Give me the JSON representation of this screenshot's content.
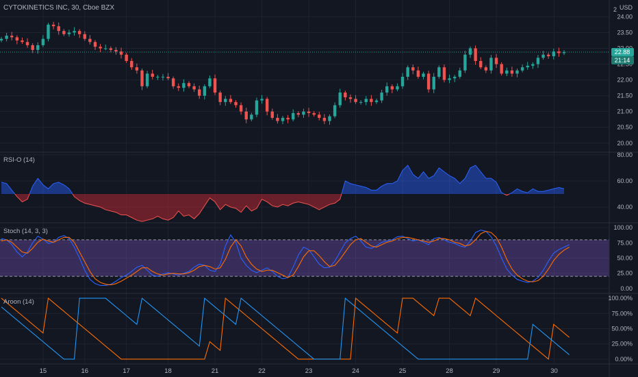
{
  "header": {
    "title": "CYTOKINETICS INC, 30, Cboe BZX",
    "currency": "USD",
    "alert_glyph": "2"
  },
  "price_badges": {
    "last_price": "22.88",
    "countdown": "21:14"
  },
  "colors": {
    "up": "#26a69a",
    "down": "#ef5350",
    "rsi_up": "#2962ff",
    "rsi_down": "#b22833",
    "stoch_k": "#2962ff",
    "stoch_d": "#ff6d00",
    "stoch_band": "#7e57c2",
    "aroon_up": "#ff6d00",
    "aroon_down": "#2196f3"
  },
  "chart_data": [
    {
      "type": "candlestick",
      "title": "CYTOKINETICS INC, 30, Cboe BZX",
      "y_ticks": [
        "24.00",
        "23.50",
        "23.00",
        "22.50",
        "22.00",
        "21.50",
        "21.00",
        "20.50",
        "20.00"
      ],
      "ylim": [
        19.8,
        24.4
      ],
      "x_ticks": [
        "15",
        "16",
        "17",
        "18",
        "21",
        "22",
        "23",
        "24",
        "25",
        "28",
        "29",
        "30"
      ],
      "last_price": 22.88,
      "closes": [
        23.3,
        23.4,
        23.35,
        23.25,
        23.2,
        23.1,
        22.95,
        23.1,
        23.3,
        23.75,
        23.7,
        23.55,
        23.45,
        23.5,
        23.55,
        23.45,
        23.3,
        23.2,
        23.05,
        23.0,
        23.0,
        22.95,
        22.9,
        22.8,
        22.6,
        22.4,
        22.3,
        21.8,
        22.2,
        22.1,
        22.1,
        22.1,
        22.05,
        21.8,
        21.75,
        21.9,
        21.8,
        21.7,
        21.5,
        21.8,
        22.05,
        21.6,
        21.3,
        21.4,
        21.3,
        21.2,
        21.0,
        20.75,
        20.9,
        21.35,
        21.4,
        21.0,
        20.8,
        20.7,
        20.8,
        20.75,
        20.95,
        20.9,
        21.0,
        20.95,
        20.9,
        20.8,
        20.7,
        20.85,
        21.2,
        21.6,
        21.45,
        21.4,
        21.3,
        21.3,
        21.4,
        21.3,
        21.35,
        21.6,
        21.8,
        21.7,
        21.8,
        22.1,
        22.4,
        22.3,
        22.1,
        22.2,
        21.7,
        22.1,
        22.4,
        22.0,
        22.05,
        22.1,
        22.3,
        22.8,
        23.0,
        22.6,
        22.4,
        22.3,
        22.7,
        22.5,
        22.2,
        22.3,
        22.2,
        22.3,
        22.4,
        22.45,
        22.5,
        22.7,
        22.8,
        22.75,
        22.9,
        22.85,
        22.88
      ]
    },
    {
      "type": "area",
      "title": "RSI-O (14)",
      "y_ticks": [
        "80.00",
        "60.00",
        "40.00"
      ],
      "ylim": [
        28,
        82
      ],
      "baseline": 50,
      "values": [
        59,
        58,
        53,
        48,
        44,
        46,
        56,
        62,
        57,
        54,
        58,
        59,
        57,
        54,
        48,
        45,
        43,
        42,
        41,
        40,
        38,
        37,
        36,
        34,
        34,
        32,
        30,
        29,
        30,
        31,
        33,
        31,
        30,
        32,
        37,
        33,
        34,
        31,
        35,
        41,
        47,
        44,
        38,
        42,
        40,
        39,
        36,
        41,
        37,
        39,
        46,
        44,
        41,
        40,
        42,
        41,
        43,
        44,
        43,
        42,
        40,
        38,
        40,
        42,
        43,
        46,
        60,
        58,
        57,
        56,
        55,
        53,
        53,
        56,
        58,
        58,
        60,
        68,
        72,
        65,
        62,
        67,
        62,
        64,
        70,
        67,
        64,
        62,
        58,
        62,
        70,
        72,
        67,
        62,
        62,
        59,
        51,
        49,
        51,
        54,
        52,
        51,
        54,
        52,
        52,
        53,
        54,
        55,
        54
      ]
    },
    {
      "type": "line",
      "title": "Stoch (14, 3, 3)",
      "y_ticks": [
        "100.00",
        "75.00",
        "50.00",
        "25.00",
        "0.00"
      ],
      "ylim": [
        -8,
        108
      ],
      "band": [
        20,
        80
      ],
      "series": [
        {
          "values": [
            82,
            80,
            72,
            60,
            52,
            60,
            75,
            86,
            81,
            74,
            76,
            84,
            87,
            82,
            68,
            50,
            30,
            15,
            8,
            5,
            5,
            7,
            12,
            18,
            22,
            28,
            35,
            38,
            30,
            22,
            20,
            24,
            26,
            24,
            22,
            25,
            28,
            35,
            40,
            38,
            30,
            28,
            40,
            70,
            88,
            76,
            50,
            38,
            30,
            26,
            30,
            34,
            28,
            20,
            16,
            18,
            35,
            55,
            68,
            64,
            52,
            40,
            34,
            35,
            45,
            60,
            75,
            82,
            86,
            78,
            68,
            66,
            70,
            76,
            78,
            80,
            85,
            86,
            82,
            78,
            80,
            76,
            72,
            82,
            84,
            80,
            76,
            74,
            70,
            68,
            78,
            92,
            96,
            94,
            85,
            70,
            50,
            32,
            22,
            15,
            12,
            10,
            12,
            18,
            30,
            45,
            58,
            64,
            68,
            72
          ]
        },
        {
          "values": [
            78,
            80,
            76,
            68,
            60,
            58,
            66,
            76,
            81,
            78,
            76,
            80,
            84,
            84,
            76,
            60,
            44,
            28,
            16,
            10,
            7,
            6,
            8,
            12,
            17,
            22,
            28,
            34,
            34,
            28,
            24,
            22,
            24,
            25,
            24,
            24,
            26,
            30,
            36,
            38,
            36,
            32,
            34,
            48,
            68,
            80,
            70,
            52,
            40,
            32,
            28,
            30,
            30,
            26,
            22,
            18,
            22,
            36,
            52,
            62,
            62,
            54,
            44,
            36,
            38,
            48,
            60,
            72,
            80,
            82,
            76,
            70,
            68,
            72,
            76,
            78,
            82,
            84,
            84,
            82,
            80,
            78,
            76,
            78,
            82,
            82,
            80,
            76,
            74,
            70,
            72,
            80,
            90,
            94,
            92,
            84,
            68,
            48,
            32,
            22,
            16,
            12,
            11,
            13,
            20,
            32,
            46,
            56,
            63,
            68
          ]
        }
      ]
    },
    {
      "type": "line",
      "title": "Aroon (14)",
      "y_ticks": [
        "100.00%",
        "75.00%",
        "50.00%",
        "25.00%",
        "0.00%"
      ],
      "ylim": [
        -8,
        108
      ],
      "series": [
        {
          "values": [
            100,
            92.9,
            85.7,
            78.6,
            71.4,
            64.3,
            57.1,
            50,
            42.9,
            100,
            92.9,
            85.7,
            78.6,
            71.4,
            64.3,
            57.1,
            50,
            42.9,
            35.7,
            28.6,
            21.4,
            14.3,
            7.1,
            0,
            0,
            0,
            0,
            0,
            0,
            0,
            0,
            0,
            0,
            0,
            0,
            0,
            0,
            0,
            0,
            0,
            28.6,
            21.4,
            14.3,
            100,
            92.9,
            85.7,
            78.6,
            71.4,
            64.3,
            57.1,
            50,
            42.9,
            35.7,
            28.6,
            21.4,
            14.3,
            7.1,
            0,
            0,
            0,
            0,
            0,
            0,
            0,
            0,
            0,
            0,
            0,
            100,
            92.9,
            85.7,
            78.6,
            71.4,
            64.3,
            57.1,
            50,
            42.9,
            100,
            100,
            100,
            92.9,
            85.7,
            78.6,
            71.4,
            100,
            100,
            100,
            92.9,
            85.7,
            78.6,
            71.4,
            100,
            92.9,
            85.7,
            78.6,
            71.4,
            64.3,
            57.1,
            50,
            42.9,
            35.7,
            28.6,
            21.4,
            14.3,
            7.1,
            0,
            57.1,
            50,
            42.9,
            35.7
          ]
        },
        {
          "values": [
            85.7,
            78.6,
            71.4,
            64.3,
            57.1,
            50,
            42.9,
            35.7,
            28.6,
            21.4,
            14.3,
            7.1,
            0,
            0,
            0,
            100,
            100,
            100,
            100,
            100,
            100,
            92.9,
            85.7,
            78.6,
            71.4,
            64.3,
            57.1,
            100,
            92.9,
            85.7,
            78.6,
            71.4,
            64.3,
            57.1,
            50,
            42.9,
            35.7,
            28.6,
            21.4,
            100,
            92.9,
            85.7,
            78.6,
            71.4,
            64.3,
            57.1,
            100,
            92.9,
            85.7,
            78.6,
            71.4,
            64.3,
            57.1,
            50,
            42.9,
            35.7,
            28.6,
            21.4,
            14.3,
            7.1,
            0,
            0,
            0,
            0,
            0,
            0,
            100,
            92.9,
            85.7,
            78.6,
            71.4,
            64.3,
            57.1,
            50,
            42.9,
            35.7,
            28.6,
            21.4,
            14.3,
            7.1,
            0,
            0,
            0,
            0,
            0,
            0,
            0,
            0,
            0,
            0,
            0,
            0,
            0,
            0,
            0,
            0,
            0,
            0,
            0,
            0,
            0,
            0,
            57.1,
            50,
            42.9,
            35.7,
            28.6,
            21.4,
            14.3,
            7.1
          ]
        }
      ]
    }
  ]
}
